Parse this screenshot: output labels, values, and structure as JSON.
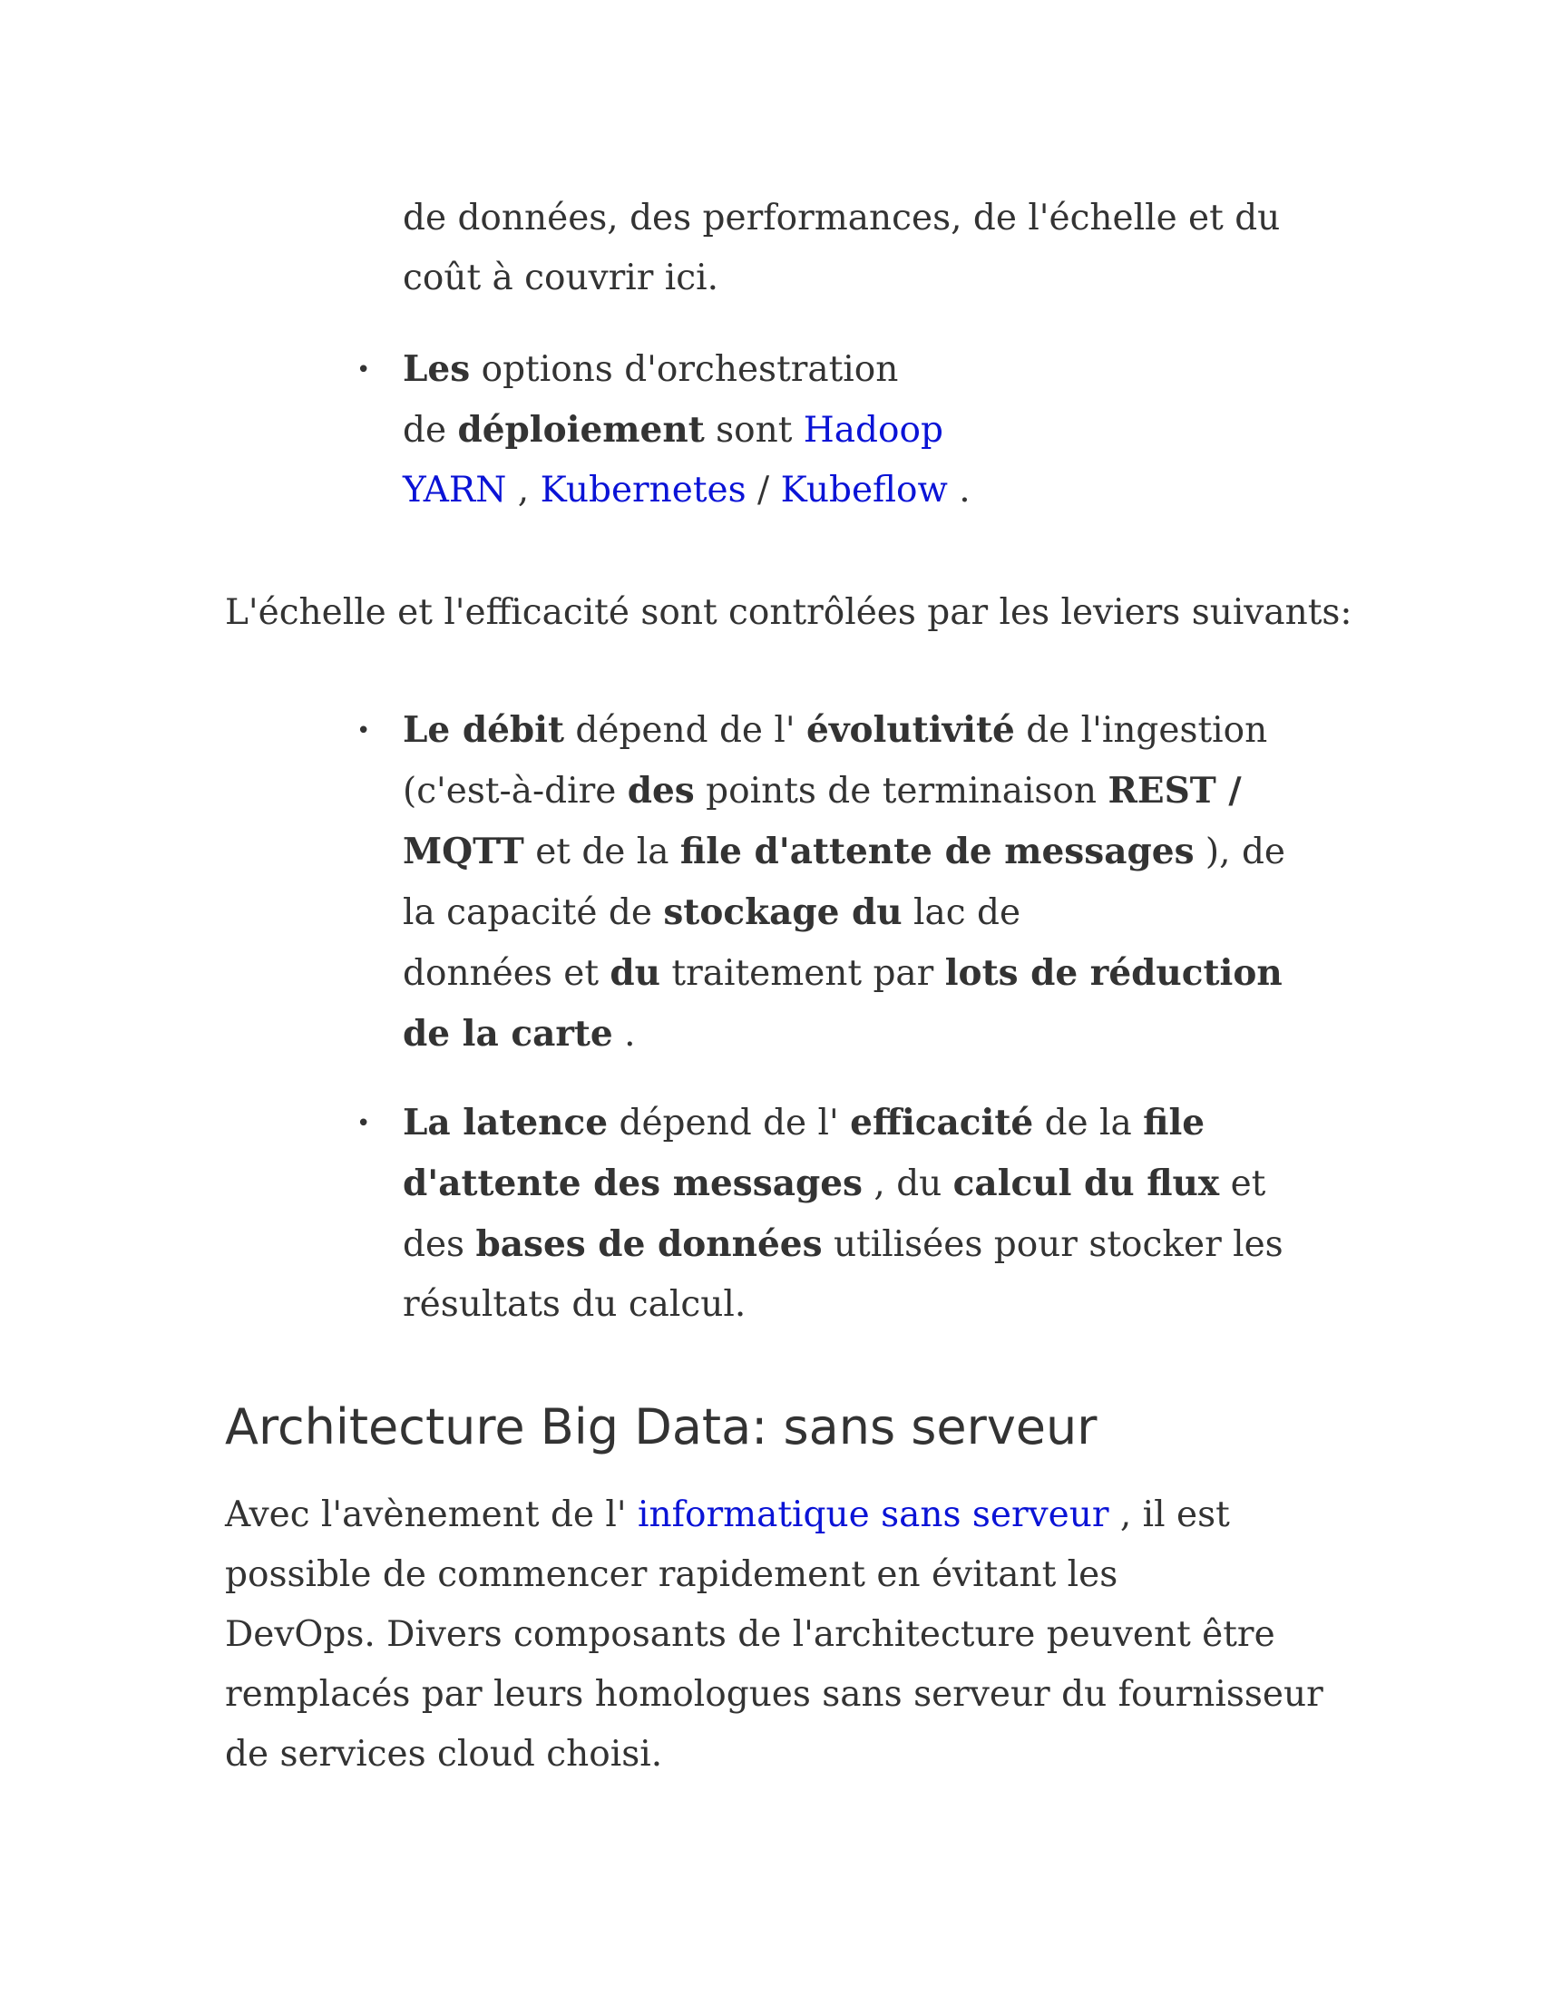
{
  "continuation": {
    "line1": "de données, des performances, de l'échelle et du",
    "line2": "coût à couvrir ici."
  },
  "deploy_item": {
    "bold_les": "Les",
    "t1": " options d'orchestration",
    "t2": "de ",
    "bold_deploiement": "déploiement",
    "t3": " sont ",
    "link_hadoop": "Hadoop",
    "link_yarn": "YARN",
    "sep1": " , ",
    "link_kubernetes": "Kubernetes",
    "sep2": " / ",
    "link_kubeflow": "Kubeflow",
    "end": " ."
  },
  "intro": "L'échelle et l'efficacité sont contrôlées par les leviers suivants:",
  "debit_item": {
    "b1": "Le débit",
    "t1": " dépend de l' ",
    "b2": "évolutivité",
    "t2": " de l'ingestion",
    "t3": "(c'est-à-dire ",
    "b3": "des",
    "t4": " points de terminaison ",
    "b4": "REST /",
    "b5": "MQTT",
    "t5": " et de la ",
    "b6": "file d'attente de messages",
    "t6": " ), de",
    "t7": "la capacité de ",
    "b7": "stockage du",
    "t8": " lac de",
    "t9": "données et ",
    "b8": "du",
    "t10": " traitement par ",
    "b9": "lots de réduction",
    "b10": "de la carte",
    "t11": " ."
  },
  "latency_item": {
    "b1": "La latence",
    "t1": " dépend de l' ",
    "b2": "efficacité",
    "t2": " de la ",
    "b3": "file",
    "b4": "d'attente des messages",
    "t3": " , du ",
    "b5": "calcul du flux",
    "t4": " et",
    "t5": "des ",
    "b6": "bases de données",
    "t6": " utilisées pour stocker les",
    "t7": "résultats du calcul."
  },
  "section_heading": "Architecture Big Data: sans serveur",
  "serverless_paragraph": {
    "t1": "Avec l'avènement de l' ",
    "link_serverless": "informatique sans serveur",
    "t2": " , il est",
    "line2": "possible de commencer rapidement en évitant les",
    "line3": "DevOps. Divers composants de l'architecture peuvent être",
    "line4": "remplacés par leurs homologues sans serveur du fournisseur",
    "line5": "de services cloud choisi."
  },
  "bullet_glyph": "•",
  "colors": {
    "text": "#333333",
    "link": "#0a13d6",
    "background": "#ffffff"
  }
}
